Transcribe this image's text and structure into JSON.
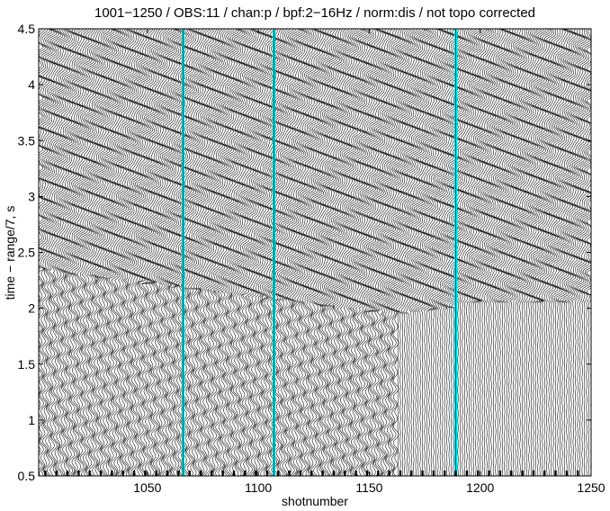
{
  "chart_data": {
    "type": "seismic-record-section",
    "title": "1001−1250 / OBS:11 / chan:p / bpf:2−16Hz / norm:dis / not topo corrected",
    "xlabel": "shotnumber",
    "ylabel": "time − range/7, s",
    "xlim": [
      1001,
      1250
    ],
    "ylim": [
      0.5,
      4.5
    ],
    "y_direction": "increasing-upward",
    "x_ticks": [
      "1050",
      "1100",
      "1150",
      "1200",
      "1250"
    ],
    "y_ticks": [
      "0.5",
      "1",
      "1.5",
      "2",
      "2.5",
      "3",
      "3.5",
      "4",
      "4.5"
    ],
    "traces": {
      "first_shot": 1001,
      "last_shot": 1250,
      "trace_color": "#000000"
    },
    "highlighted_shots": [
      1066,
      1107,
      1189
    ],
    "highlight_color": "#00e5ee",
    "grid": false,
    "legend": "none"
  }
}
